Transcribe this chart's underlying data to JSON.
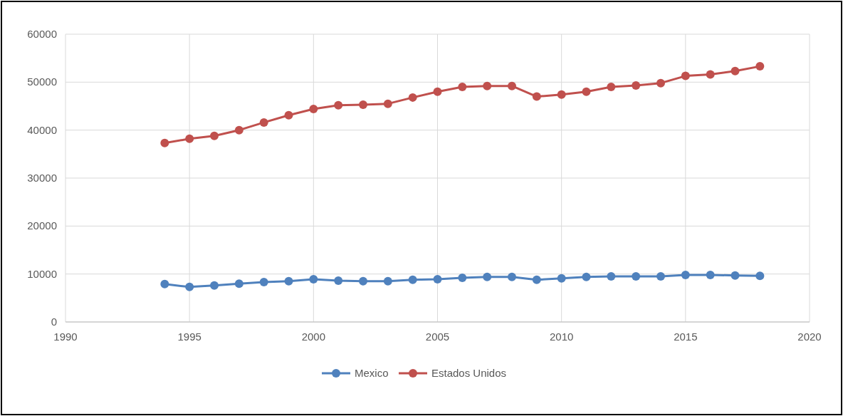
{
  "chart_data": {
    "type": "line",
    "x": [
      1994,
      1995,
      1996,
      1997,
      1998,
      1999,
      2000,
      2001,
      2002,
      2003,
      2004,
      2005,
      2006,
      2007,
      2008,
      2009,
      2010,
      2011,
      2012,
      2013,
      2014,
      2015,
      2016,
      2017,
      2018
    ],
    "series": [
      {
        "name": "Mexico",
        "color": "#4f81bd",
        "values": [
          7900,
          7300,
          7600,
          8000,
          8300,
          8500,
          8900,
          8600,
          8500,
          8500,
          8800,
          8900,
          9200,
          9400,
          9400,
          8800,
          9100,
          9400,
          9500,
          9500,
          9500,
          9800,
          9800,
          9700,
          9600
        ]
      },
      {
        "name": "Estados Unidos",
        "color": "#c0504d",
        "values": [
          37300,
          38200,
          38800,
          40000,
          41600,
          43100,
          44400,
          45200,
          45300,
          45500,
          46800,
          48000,
          49000,
          49200,
          49200,
          47000,
          47400,
          48000,
          49000,
          49300,
          49800,
          51300,
          51600,
          52300,
          53300
        ]
      }
    ],
    "xlim": [
      1990,
      2020
    ],
    "xticks": [
      1990,
      1995,
      2000,
      2005,
      2010,
      2015,
      2020
    ],
    "ylim": [
      0,
      60000
    ],
    "yticks": [
      0,
      10000,
      20000,
      30000,
      40000,
      50000,
      60000
    ],
    "grid": true,
    "legend": "bottom",
    "marker": "circle",
    "line_style": "solid"
  }
}
